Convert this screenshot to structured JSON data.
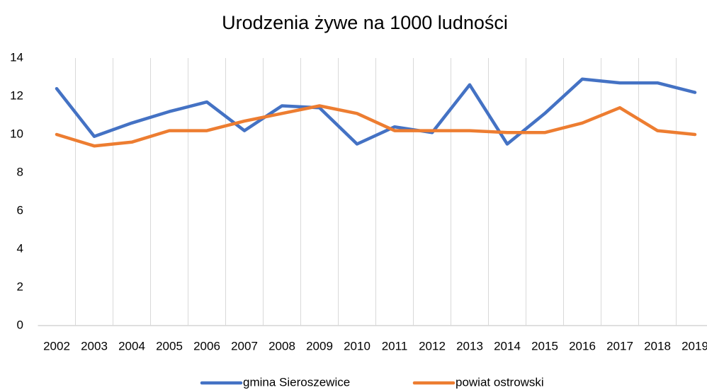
{
  "chart_data": {
    "type": "line",
    "title": "Urodzenia żywe na 1000 ludności",
    "categories": [
      "2002",
      "2003",
      "2004",
      "2005",
      "2006",
      "2007",
      "2008",
      "2009",
      "2010",
      "2011",
      "2012",
      "2013",
      "2014",
      "2015",
      "2016",
      "2017",
      "2018",
      "2019"
    ],
    "series": [
      {
        "name": "gmina Sieroszewice",
        "color": "#4472c4",
        "values": [
          12.4,
          9.9,
          10.6,
          11.2,
          11.7,
          10.2,
          11.5,
          11.4,
          9.5,
          10.4,
          10.1,
          12.6,
          9.5,
          11.1,
          12.9,
          12.7,
          12.7,
          12.2
        ]
      },
      {
        "name": "powiat ostrowski",
        "color": "#ed7d31",
        "values": [
          10.0,
          9.4,
          9.6,
          10.2,
          10.2,
          10.7,
          11.1,
          11.5,
          11.1,
          10.2,
          10.2,
          10.2,
          10.1,
          10.1,
          10.6,
          11.4,
          10.2,
          10.0
        ]
      }
    ],
    "ylim": [
      0,
      14
    ],
    "yticks": [
      0,
      2,
      4,
      6,
      8,
      10,
      12,
      14
    ],
    "grid": "vertical",
    "legend": "bottom"
  }
}
